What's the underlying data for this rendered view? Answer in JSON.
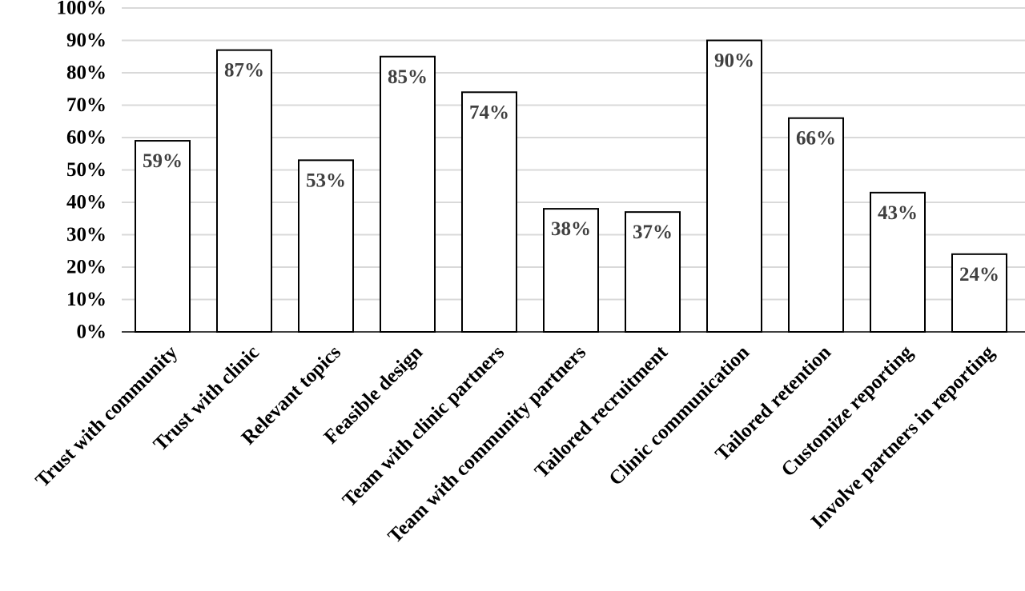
{
  "chart_data": {
    "type": "bar",
    "title": "",
    "xlabel": "",
    "ylabel": "",
    "ylim": [
      0,
      100
    ],
    "yticks": [
      0,
      10,
      20,
      30,
      40,
      50,
      60,
      70,
      80,
      90,
      100
    ],
    "ytick_labels": [
      "0%",
      "10%",
      "20%",
      "30%",
      "40%",
      "50%",
      "60%",
      "70%",
      "80%",
      "90%",
      "100%"
    ],
    "grid": true,
    "legend": "none",
    "categories": [
      "Trust with community",
      "Trust with clinic",
      "Relevant topics",
      "Feasible design",
      "Team with clinic partners",
      "Team with community partners",
      "Tailored recruitment",
      "Clinic communication",
      "Tailored retention",
      "Customize reporting",
      "Involve partners in reporting"
    ],
    "values": [
      59,
      87,
      53,
      85,
      74,
      38,
      37,
      90,
      66,
      43,
      24
    ],
    "data_labels": [
      "59%",
      "87%",
      "53%",
      "85%",
      "74%",
      "38%",
      "37%",
      "90%",
      "66%",
      "43%",
      "24%"
    ],
    "colors": {
      "bar_fill": "#ffffff",
      "bar_stroke": "#000000",
      "grid": "#d9d9d9",
      "data_label": "#404040"
    }
  }
}
